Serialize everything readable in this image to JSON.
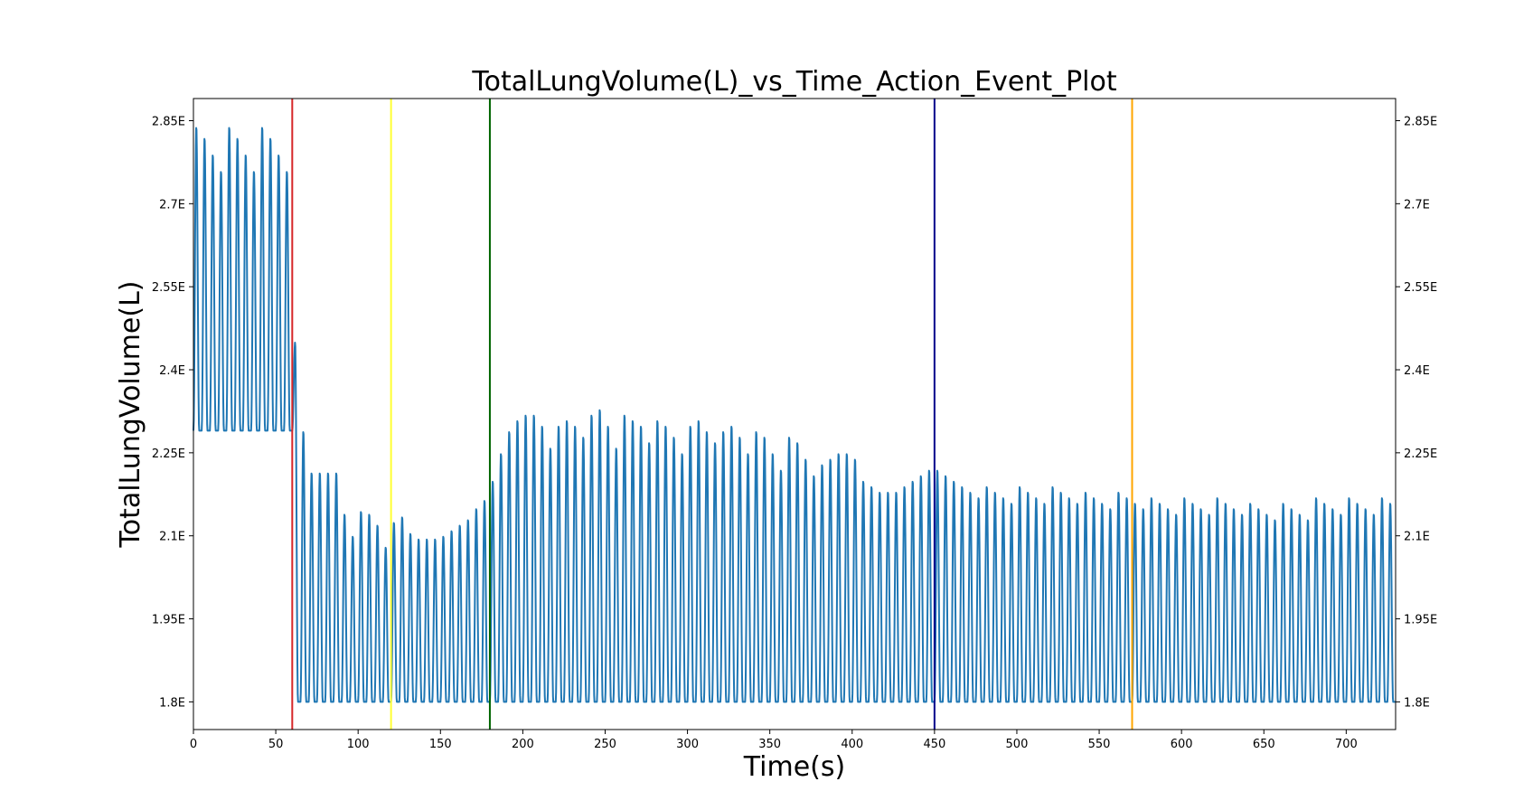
{
  "chart_data": {
    "type": "line",
    "title": "TotalLungVolume(L)_vs_Time_Action_Event_Plot",
    "xlabel": "Time(s)",
    "ylabel": "TotalLungVolume(L)",
    "xlim": [
      0,
      730
    ],
    "ylim": [
      1.75,
      2.89
    ],
    "x_ticks": [
      0,
      50,
      100,
      150,
      200,
      250,
      300,
      350,
      400,
      450,
      500,
      550,
      600,
      650,
      700
    ],
    "y_ticks": [
      1.8,
      1.95,
      2.1,
      2.25,
      2.4,
      2.55,
      2.7,
      2.85
    ],
    "y_tick_labels": [
      "1.8E",
      "1.95E",
      "2.1E",
      "2.25E",
      "2.4E",
      "2.55E",
      "2.7E",
      "2.85E"
    ],
    "grid": false,
    "series_color": "#1f77b4",
    "series": [
      {
        "breath_period_s": 5,
        "phases": [
          {
            "t_start": 0,
            "t_end": 60,
            "trough": 2.29,
            "peaks": [
              2.84,
              2.82,
              2.79,
              2.76,
              2.84,
              2.82,
              2.79,
              2.76,
              2.84,
              2.82,
              2.79,
              2.76
            ]
          },
          {
            "t_start": 60,
            "t_end": 730,
            "trough": 1.8,
            "peaks": [
              2.45,
              2.29,
              2.215,
              2.215,
              2.215,
              2.215,
              2.14,
              2.1,
              2.145,
              2.14,
              2.12,
              2.08,
              2.125,
              2.135,
              2.105,
              2.095,
              2.095,
              2.095,
              2.1,
              2.11,
              2.12,
              2.13,
              2.15,
              2.165,
              2.2,
              2.25,
              2.29,
              2.31,
              2.32,
              2.32,
              2.3,
              2.26,
              2.3,
              2.31,
              2.3,
              2.28,
              2.32,
              2.33,
              2.3,
              2.26,
              2.32,
              2.31,
              2.3,
              2.27,
              2.31,
              2.3,
              2.28,
              2.25,
              2.3,
              2.31,
              2.29,
              2.27,
              2.29,
              2.3,
              2.28,
              2.25,
              2.29,
              2.28,
              2.25,
              2.22,
              2.28,
              2.27,
              2.24,
              2.21,
              2.23,
              2.24,
              2.25,
              2.25,
              2.24,
              2.2,
              2.19,
              2.18,
              2.18,
              2.18,
              2.19,
              2.2,
              2.21,
              2.22,
              2.22,
              2.21,
              2.2,
              2.19,
              2.18,
              2.17,
              2.19,
              2.18,
              2.17,
              2.16,
              2.19,
              2.18,
              2.17,
              2.16,
              2.19,
              2.18,
              2.17,
              2.16,
              2.18,
              2.17,
              2.16,
              2.15,
              2.18,
              2.17,
              2.16,
              2.15,
              2.17,
              2.16,
              2.15,
              2.14,
              2.17,
              2.16,
              2.15,
              2.14,
              2.17,
              2.16,
              2.15,
              2.14,
              2.16,
              2.15,
              2.14,
              2.13,
              2.16,
              2.15,
              2.14,
              2.13,
              2.17,
              2.16,
              2.15,
              2.14,
              2.17,
              2.16,
              2.15,
              2.14,
              2.17,
              2.16
            ]
          }
        ]
      }
    ],
    "event_lines": [
      {
        "x": 60,
        "color": "#d62728"
      },
      {
        "x": 120,
        "color": "#ffff33"
      },
      {
        "x": 180,
        "color": "#006400"
      },
      {
        "x": 450,
        "color": "#00008b"
      },
      {
        "x": 570,
        "color": "#ffa500"
      }
    ]
  }
}
